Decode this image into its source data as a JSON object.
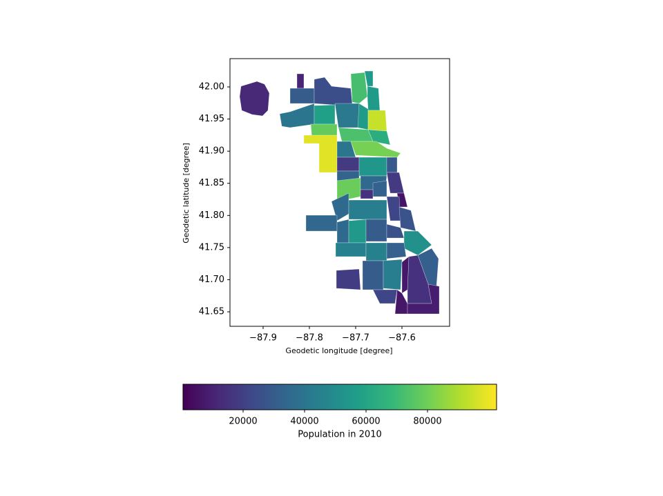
{
  "chart_data": {
    "type": "choropleth",
    "xlabel": "Geodetic longitude [degree]",
    "ylabel": "Geodetic latitude [degree]",
    "xlim": [
      -87.9716,
      -87.497
    ],
    "ylim": [
      41.6275,
      42.044
    ],
    "xticks": [
      {
        "value": -87.9,
        "label": "−87.9"
      },
      {
        "value": -87.8,
        "label": "−87.8"
      },
      {
        "value": -87.7,
        "label": "−87.7"
      },
      {
        "value": -87.6,
        "label": "−87.6"
      }
    ],
    "yticks": [
      41.65,
      {
        "value": 41.7,
        "label": "41.70"
      },
      41.75,
      {
        "value": 41.8,
        "label": "41.80"
      },
      41.85,
      {
        "value": 41.9,
        "label": "41.90"
      },
      41.95,
      {
        "value": 42.0,
        "label": "42.00"
      }
    ],
    "colormap": "viridis",
    "values": [
      12000,
      11000,
      30000,
      25000,
      72000,
      55000,
      56000,
      40000,
      58000,
      42000,
      56000,
      94000,
      78000,
      73000,
      64000,
      98000,
      81000,
      40000,
      18000,
      54000,
      29000,
      33000,
      79000,
      35000,
      32000,
      18000,
      6000,
      15000,
      35000,
      34000,
      44000,
      22000,
      27000,
      35000,
      55000,
      30000,
      26000,
      52000,
      45000,
      45000,
      32000,
      31000,
      19000,
      30000,
      22000,
      44000,
      15000,
      6500,
      9000,
      7000
    ],
    "colorbar": {
      "label": "Population in 2010",
      "lim": [
        450,
        102470
      ],
      "ticks": [
        20000,
        40000,
        60000,
        80000
      ]
    }
  }
}
